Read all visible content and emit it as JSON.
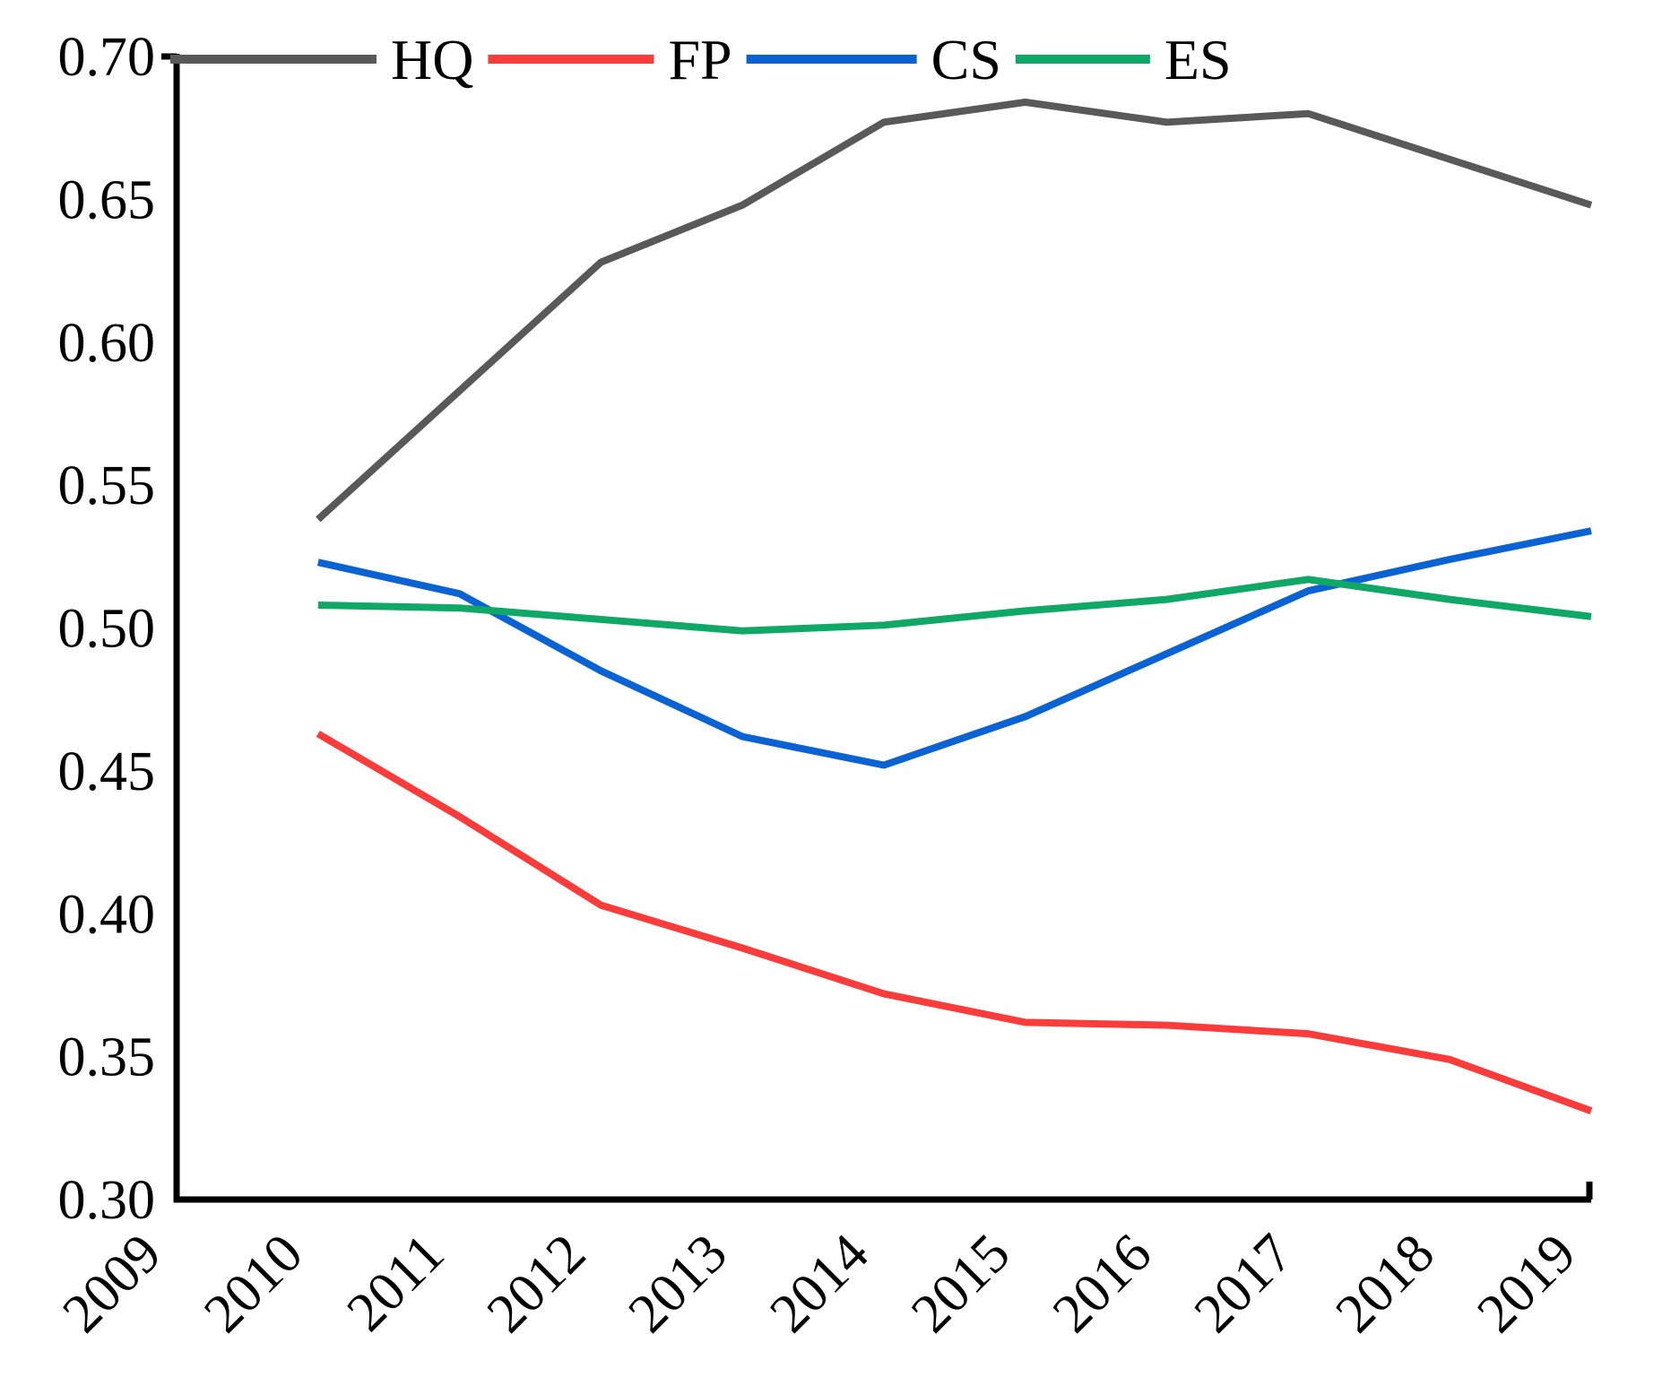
{
  "chart_data": {
    "type": "line",
    "title": "",
    "xlabel": "",
    "ylabel": "",
    "grid": false,
    "legend_position": "top-inline",
    "x": [
      2010,
      2011,
      2012,
      2013,
      2014,
      2015,
      2016,
      2017,
      2018,
      2019
    ],
    "series": [
      {
        "name": "HQ",
        "color": "#595959",
        "values": [
          0.538,
          0.583,
          0.628,
          0.648,
          0.677,
          0.684,
          0.677,
          0.68,
          0.664,
          0.648
        ]
      },
      {
        "name": "FP",
        "color": "#fc3b3b",
        "values": [
          0.463,
          0.434,
          0.403,
          0.388,
          0.372,
          0.362,
          0.361,
          0.358,
          0.349,
          0.331
        ]
      },
      {
        "name": "CS",
        "color": "#0b63d3",
        "values": [
          0.523,
          0.512,
          0.485,
          0.462,
          0.452,
          0.469,
          0.491,
          0.513,
          0.524,
          0.534
        ]
      },
      {
        "name": "ES",
        "color": "#10a867",
        "values": [
          0.508,
          0.507,
          0.503,
          0.499,
          0.501,
          0.506,
          0.51,
          0.517,
          0.51,
          0.504
        ]
      }
    ],
    "x_axis": {
      "range": [
        2009,
        2019
      ],
      "tick_labels": [
        "2009",
        "2010",
        "2011",
        "2012",
        "2013",
        "2014",
        "2015",
        "2016",
        "2017",
        "2018",
        "2019"
      ],
      "label_rotation_deg": 45
    },
    "y_axis": {
      "range": [
        0.3,
        0.7
      ],
      "tick_labels": [
        "0.70",
        "0.65",
        "0.60",
        "0.55",
        "0.50",
        "0.45",
        "0.40",
        "0.35",
        "0.30"
      ],
      "tick_values": [
        0.7,
        0.65,
        0.6,
        0.55,
        0.5,
        0.45,
        0.4,
        0.35,
        0.3
      ]
    },
    "legend": {
      "items": [
        {
          "label": "HQ",
          "color": "#595959"
        },
        {
          "label": "FP",
          "color": "#fc3b3b"
        },
        {
          "label": "CS",
          "color": "#0b63d3"
        },
        {
          "label": "ES",
          "color": "#10a867"
        }
      ]
    },
    "axis_color": "#000000"
  }
}
